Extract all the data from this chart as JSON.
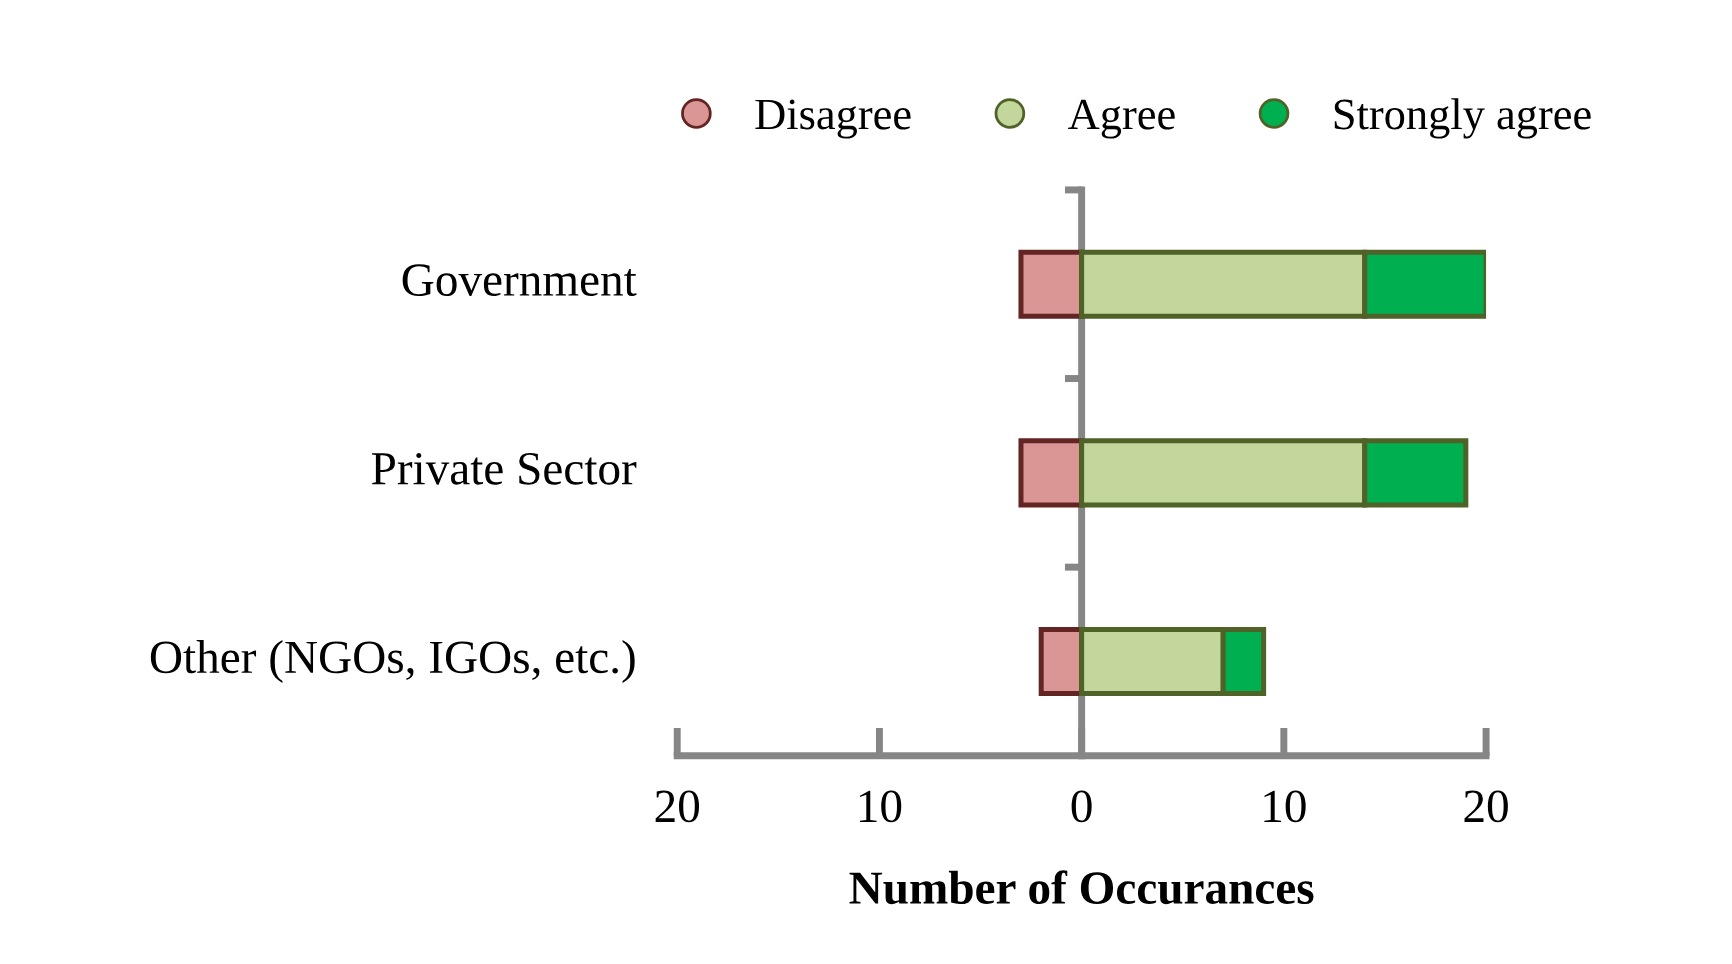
{
  "chart_data": {
    "type": "bar",
    "orientation": "horizontal",
    "stacked": true,
    "categories": [
      "Government",
      "Private Sector",
      "Other (NGOs, IGOs, etc.)"
    ],
    "series": [
      {
        "name": "Disagree",
        "color": "#d99694",
        "values": [
          -3,
          -3,
          -2
        ]
      },
      {
        "name": "Agree",
        "color": "#c3d69b",
        "values": [
          14,
          14,
          7
        ]
      },
      {
        "name": "Strongly agree",
        "color": "#00b050",
        "values": [
          6,
          5,
          2
        ]
      }
    ],
    "xlabel": "Number of Occurances",
    "xlim": [
      -20,
      20
    ],
    "xticks": [
      {
        "value": -20,
        "label": "20"
      },
      {
        "value": -10,
        "label": "10"
      },
      0,
      10,
      20
    ],
    "legend": "top"
  }
}
